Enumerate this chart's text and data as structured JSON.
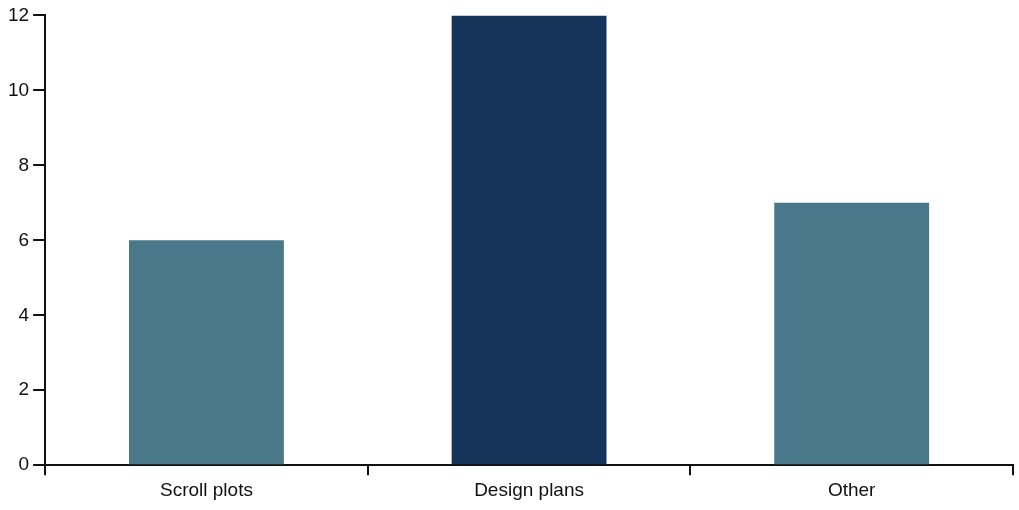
{
  "chart_data": {
    "type": "bar",
    "categories": [
      "Scroll plots",
      "Design plans",
      "Other"
    ],
    "values": [
      6,
      12,
      7
    ],
    "colors": [
      "#4a788b",
      "#163459",
      "#4a788b"
    ],
    "ylim": [
      0,
      12
    ],
    "yticks": [
      0,
      2,
      4,
      6,
      8,
      10,
      12
    ],
    "grid": false,
    "legend": false
  }
}
